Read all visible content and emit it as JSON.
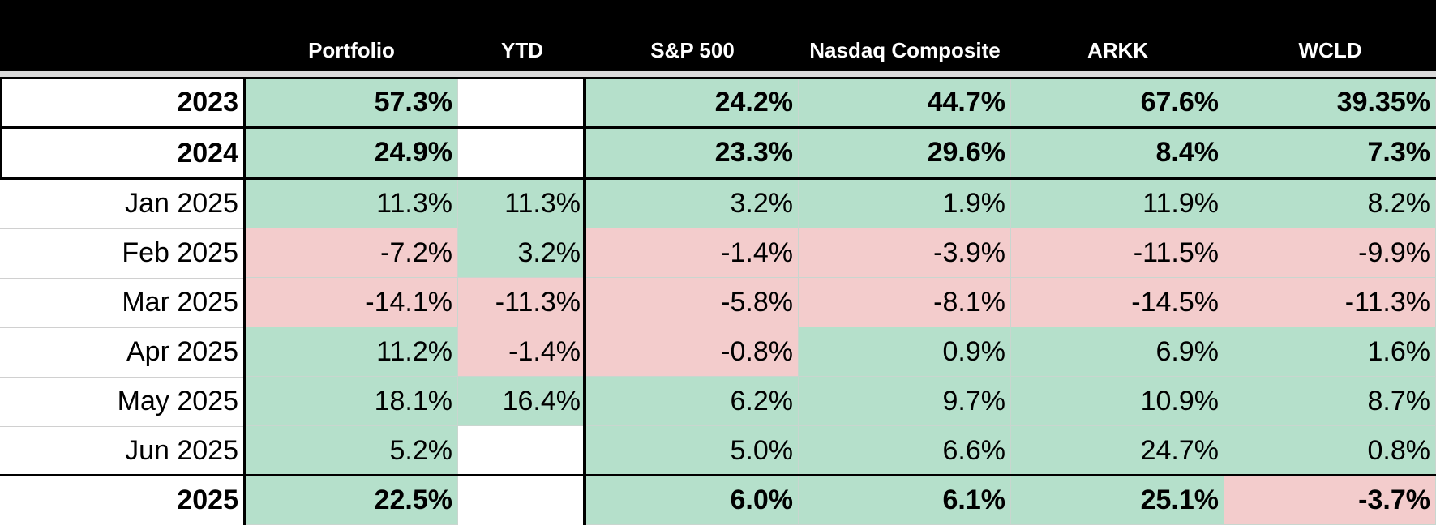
{
  "colors": {
    "positive": "#b5e0cb",
    "negative": "#f3cccc",
    "empty": "#ffffff",
    "header_bg": "#000000",
    "header_text": "#ffffff",
    "grid_line": "#c9d6cf"
  },
  "chart_data": {
    "type": "table",
    "columns": [
      "",
      "Portfolio",
      "YTD",
      "S&P 500",
      "Nasdaq Composite",
      "ARKK",
      "WCLD"
    ],
    "rows": [
      {
        "label": "2023",
        "bold": true,
        "cells": [
          "57.3%",
          "",
          "24.2%",
          "44.7%",
          "67.6%",
          "39.35%"
        ]
      },
      {
        "label": "2024",
        "bold": true,
        "cells": [
          "24.9%",
          "",
          "23.3%",
          "29.6%",
          "8.4%",
          "7.3%"
        ]
      },
      {
        "label": "Jan 2025",
        "bold": false,
        "cells": [
          "11.3%",
          "11.3%",
          "3.2%",
          "1.9%",
          "11.9%",
          "8.2%"
        ]
      },
      {
        "label": "Feb 2025",
        "bold": false,
        "cells": [
          "-7.2%",
          "3.2%",
          "-1.4%",
          "-3.9%",
          "-11.5%",
          "-9.9%"
        ]
      },
      {
        "label": "Mar 2025",
        "bold": false,
        "cells": [
          "-14.1%",
          "-11.3%",
          "-5.8%",
          "-8.1%",
          "-14.5%",
          "-11.3%"
        ]
      },
      {
        "label": "Apr 2025",
        "bold": false,
        "cells": [
          "11.2%",
          "-1.4%",
          "-0.8%",
          "0.9%",
          "6.9%",
          "1.6%"
        ]
      },
      {
        "label": "May 2025",
        "bold": false,
        "cells": [
          "18.1%",
          "16.4%",
          "6.2%",
          "9.7%",
          "10.9%",
          "8.7%"
        ]
      },
      {
        "label": "Jun 2025",
        "bold": false,
        "cells": [
          "5.2%",
          "",
          "5.0%",
          "6.6%",
          "24.7%",
          "0.8%"
        ]
      },
      {
        "label": "2025",
        "bold": true,
        "cells": [
          "22.5%",
          "",
          "6.0%",
          "6.1%",
          "25.1%",
          "-3.7%"
        ]
      }
    ]
  }
}
